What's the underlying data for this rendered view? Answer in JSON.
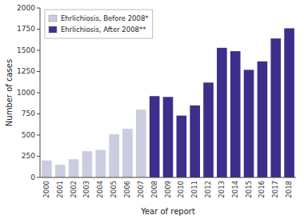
{
  "chart_data": {
    "type": "bar",
    "xlabel": "Year of report",
    "ylabel": "Number of cases",
    "categories": [
      "2000",
      "2001",
      "2002",
      "2003",
      "2004",
      "2005",
      "2006",
      "2007",
      "2008",
      "2009",
      "2010",
      "2011",
      "2012",
      "2013",
      "2014",
      "2015",
      "2016",
      "2017",
      "2018"
    ],
    "series": [
      {
        "name": "Ehrlichiosis, Before 2008*",
        "color": "#cccce0",
        "values": [
          200,
          150,
          215,
          310,
          325,
          510,
          575,
          800,
          null,
          null,
          null,
          null,
          null,
          null,
          null,
          null,
          null,
          null,
          null
        ]
      },
      {
        "name": "Ehrlichiosis, After 2008**",
        "color": "#3d2e8c",
        "values": [
          null,
          null,
          null,
          null,
          null,
          null,
          null,
          null,
          960,
          950,
          730,
          850,
          1120,
          1530,
          1490,
          1270,
          1370,
          1640,
          1760
        ]
      }
    ],
    "ylim": [
      0,
      2000
    ],
    "yticks": [
      0,
      250,
      500,
      750,
      1000,
      1250,
      1500,
      1750,
      2000
    ],
    "grid": false,
    "legend": "upper-left"
  }
}
